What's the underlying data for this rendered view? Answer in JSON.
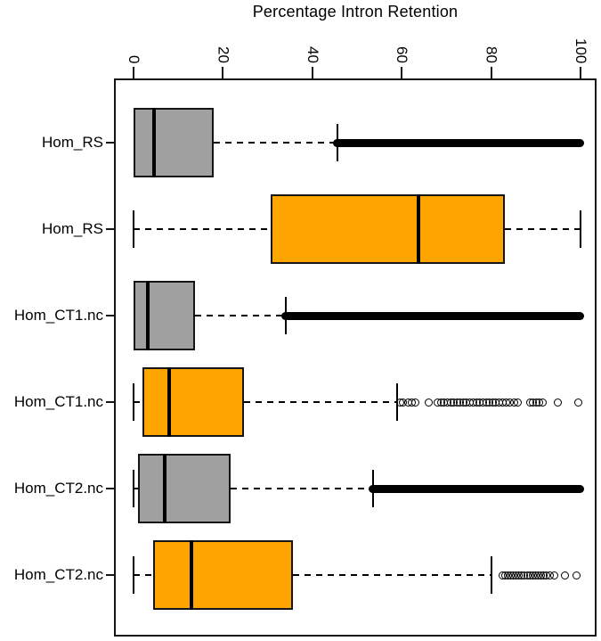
{
  "chart_data": {
    "type": "boxplot",
    "orientation": "horizontal",
    "title": "Percentage Intron Retention",
    "xlabel": "Percentage Intron Retention",
    "axis_side": "top",
    "xlim": [
      0,
      100
    ],
    "x_ticks": [
      0,
      20,
      40,
      60,
      80,
      100
    ],
    "grid": false,
    "legend": null,
    "colors": {
      "gray_box": "#a0a0a0",
      "orange_box": "#ffa500",
      "line": "#000000",
      "background": "#ffffff"
    },
    "rows": [
      {
        "label": "Hom_RS",
        "color": "gray",
        "whisker_low": null,
        "q1": 0,
        "median": 4.5,
        "q3": 18,
        "whisker_high": 45.6,
        "outlier_band": [
          45.6,
          100
        ],
        "outliers": []
      },
      {
        "label": "Hom_RS",
        "color": "orange",
        "whisker_low": 0,
        "q1": 30.7,
        "median": 63.7,
        "q3": 83.1,
        "whisker_high": 100,
        "outlier_band": null,
        "outliers": []
      },
      {
        "label": "Hom_CT1.nc",
        "color": "gray",
        "whisker_low": null,
        "q1": 0,
        "median": 3.2,
        "q3": 13.7,
        "whisker_high": 34,
        "outlier_band": [
          34,
          100
        ],
        "outliers": []
      },
      {
        "label": "Hom_CT1.nc",
        "color": "orange",
        "whisker_low": 0,
        "q1": 2,
        "median": 8,
        "q3": 24.7,
        "whisker_high": 59,
        "outlier_band": null,
        "outliers": [
          59.7,
          60.3,
          61.5,
          62.2,
          63,
          66,
          68.1,
          68.8,
          69.5,
          70.2,
          71,
          71.7,
          72.4,
          73.1,
          73.8,
          74.5,
          75.2,
          76,
          76.7,
          77.4,
          78.1,
          78.9,
          79.6,
          80.3,
          81,
          81.8,
          82.5,
          83.3,
          84.2,
          85.1,
          86,
          88.7,
          89.4,
          90.1,
          90.8,
          91.5,
          95,
          99.6
        ]
      },
      {
        "label": "Hom_CT2.nc",
        "color": "gray",
        "whisker_low": 0,
        "q1": 1,
        "median": 7,
        "q3": 21.7,
        "whisker_high": 53.5,
        "outlier_band": [
          53.5,
          100
        ],
        "outliers": []
      },
      {
        "label": "Hom_CT2.nc",
        "color": "orange",
        "whisker_low": 0,
        "q1": 4.3,
        "median": 13,
        "q3": 35.7,
        "whisker_high": 80,
        "outlier_band": null,
        "outliers": [
          82.5,
          83.1,
          83.7,
          84.3,
          84.9,
          85.5,
          86.1,
          86.7,
          87.4,
          88.2,
          88.8,
          89.4,
          90,
          90.6,
          91.2,
          91.8,
          92.4,
          93.1,
          94.1,
          96.6,
          99.2
        ]
      }
    ]
  }
}
